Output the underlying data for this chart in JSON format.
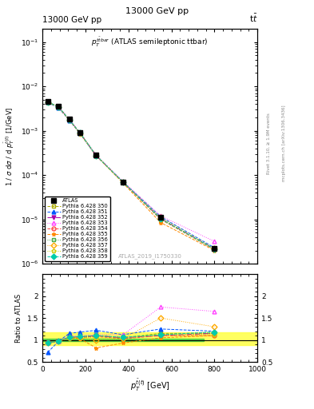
{
  "title_top": "13000 GeV pp",
  "title_top_right": "t$\\bar{t}$",
  "plot_title": "$p_T^{t\\bar{t}bar}$ (ATLAS semileptonic ttbar)",
  "watermark": "ATLAS_2019_I1750330",
  "right_label1": "Rivet 3.1.10, ≥ 1.9M events",
  "right_label2": "mcplots.cern.ch [arXiv:1306.3436]",
  "x_points": [
    25,
    75,
    125,
    175,
    250,
    375,
    550,
    800
  ],
  "atlas_y": [
    0.0045,
    0.0035,
    0.0018,
    0.0009,
    0.00028,
    7e-05,
    1.1e-05,
    2.2e-06
  ],
  "atlas_yerr": [
    0.0002,
    0.00015,
    8e-05,
    4e-05,
    1.2e-05,
    3e-06,
    5e-07,
    1e-07
  ],
  "series": [
    {
      "label": "Pythia 6.428 350",
      "color": "#aaaa00",
      "linestyle": "--",
      "marker": "s",
      "fillstyle": "none",
      "y": [
        0.0044,
        0.0034,
        0.00175,
        0.00088,
        0.000275,
        6.8e-05,
        1e-05,
        2.1e-06
      ],
      "ratio": [
        0.93,
        0.97,
        1.05,
        1.05,
        1.1,
        1.05,
        1.15,
        1.15
      ]
    },
    {
      "label": "Pythia 6.428 351",
      "color": "#0055ff",
      "linestyle": "--",
      "marker": "^",
      "fillstyle": "full",
      "y": [
        0.0043,
        0.0033,
        0.00172,
        0.00086,
        0.00027,
        7e-05,
        1.15e-05,
        2.3e-06
      ],
      "ratio": [
        0.72,
        0.97,
        1.15,
        1.18,
        1.22,
        1.12,
        1.25,
        1.2
      ]
    },
    {
      "label": "Pythia 6.428 352",
      "color": "#aa00aa",
      "linestyle": "-.",
      "marker": "v",
      "fillstyle": "full",
      "y": [
        0.00445,
        0.00345,
        0.00178,
        0.00089,
        0.000278,
        6.9e-05,
        1.05e-05,
        2.15e-06
      ],
      "ratio": [
        0.93,
        0.98,
        1.06,
        1.07,
        1.1,
        1.05,
        1.1,
        1.15
      ]
    },
    {
      "label": "Pythia 6.428 353",
      "color": "#ff44ff",
      "linestyle": ":",
      "marker": "^",
      "fillstyle": "none",
      "y": [
        0.0045,
        0.0035,
        0.0018,
        0.0009,
        0.00028,
        7.2e-05,
        1.2e-05,
        3.2e-06
      ],
      "ratio": [
        0.93,
        0.98,
        1.08,
        1.1,
        1.12,
        1.12,
        1.75,
        1.65
      ]
    },
    {
      "label": "Pythia 6.428 354",
      "color": "#ff4444",
      "linestyle": "--",
      "marker": "o",
      "fillstyle": "none",
      "y": [
        0.0044,
        0.0034,
        0.00176,
        0.00088,
        0.000276,
        6.85e-05,
        1.02e-05,
        2.12e-06
      ],
      "ratio": [
        0.93,
        0.97,
        1.06,
        1.06,
        1.08,
        1.03,
        1.1,
        1.1
      ]
    },
    {
      "label": "Pythia 6.428 355",
      "color": "#ff8800",
      "linestyle": "--",
      "marker": "*",
      "fillstyle": "full",
      "y": [
        0.0044,
        0.0034,
        0.00175,
        0.00087,
        0.000272,
        6.6e-05,
        8.5e-06,
        2e-06
      ],
      "ratio": [
        0.93,
        0.97,
        1.05,
        1.03,
        0.82,
        0.93,
        1.05,
        1.1
      ]
    },
    {
      "label": "Pythia 6.428 356",
      "color": "#44aa44",
      "linestyle": ":",
      "marker": "s",
      "fillstyle": "none",
      "y": [
        0.00445,
        0.00345,
        0.00177,
        0.000885,
        0.000277,
        6.95e-05,
        1.05e-05,
        2.15e-06
      ],
      "ratio": [
        0.93,
        0.98,
        1.05,
        1.07,
        1.1,
        1.06,
        1.12,
        1.18
      ]
    },
    {
      "label": "Pythia 6.428 357",
      "color": "#ffaa00",
      "linestyle": ":",
      "marker": "D",
      "fillstyle": "none",
      "y": [
        0.00442,
        0.00342,
        0.00176,
        0.000882,
        0.000274,
        6.82e-05,
        1.1e-05,
        2.2e-06
      ],
      "ratio": [
        0.93,
        0.97,
        1.05,
        1.05,
        1.0,
        1.03,
        1.5,
        1.3
      ]
    },
    {
      "label": "Pythia 6.428 358",
      "color": "#cccc00",
      "linestyle": ":",
      "marker": "p",
      "fillstyle": "none",
      "y": [
        0.00443,
        0.00343,
        0.00177,
        0.000883,
        0.000275,
        6.85e-05,
        1.06e-05,
        2.16e-06
      ],
      "ratio": [
        0.93,
        0.98,
        1.05,
        1.06,
        1.05,
        1.04,
        1.12,
        1.12
      ]
    },
    {
      "label": "Pythia 6.428 359",
      "color": "#00ccaa",
      "linestyle": "--",
      "marker": "D",
      "fillstyle": "full",
      "y": [
        0.00445,
        0.00345,
        0.00178,
        0.00089,
        0.000276,
        6.9e-05,
        1.04e-05,
        2.14e-06
      ],
      "ratio": [
        0.93,
        0.98,
        1.06,
        1.08,
        1.1,
        1.06,
        1.12,
        1.18
      ]
    }
  ],
  "green_band_lo": 0.97,
  "green_band_hi": 1.03,
  "yellow_band_lo": 0.88,
  "yellow_band_hi": 1.18,
  "xlim": [
    0,
    1000
  ],
  "ylim_main": [
    1e-06,
    0.2
  ],
  "ylim_ratio": [
    0.5,
    2.5
  ],
  "ratio_yticks": [
    0.5,
    1.0,
    1.5,
    2.0
  ]
}
